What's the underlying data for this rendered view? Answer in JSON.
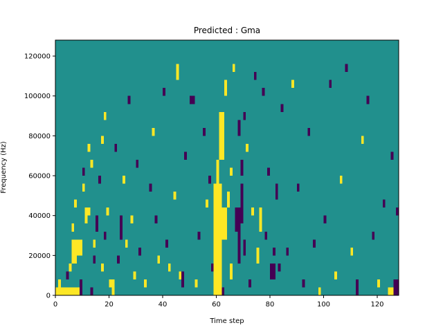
{
  "chart_data": {
    "type": "heatmap",
    "title": "Predicted : Gma",
    "xlabel": "Time step",
    "ylabel": "Frequency (Hz)",
    "xlim": [
      0,
      128
    ],
    "ylim": [
      0,
      128000
    ],
    "xticks": [
      0,
      20,
      40,
      60,
      80,
      100,
      120
    ],
    "yticks": [
      0,
      20000,
      40000,
      60000,
      80000,
      100000,
      120000
    ],
    "xtick_labels": [
      "0",
      "20",
      "40",
      "60",
      "80",
      "100",
      "120"
    ],
    "ytick_labels": [
      "0",
      "20000",
      "40000",
      "60000",
      "80000",
      "100000",
      "120000"
    ],
    "colormap": "viridis",
    "colors": {
      "low": "#440154",
      "mid": "#21908d",
      "high": "#fde725"
    },
    "grid": false,
    "levels": [
      -1,
      0,
      1
    ],
    "background_level": 0,
    "cells": [
      {
        "t": 0,
        "f": 0,
        "w": 9,
        "h": 4000,
        "level": 1
      },
      {
        "t": 1,
        "f": 4000,
        "w": 1,
        "h": 4000,
        "level": 1
      },
      {
        "t": 4,
        "f": 8000,
        "w": 1,
        "h": 4000,
        "level": -1
      },
      {
        "t": 5,
        "f": 12000,
        "w": 1,
        "h": 4000,
        "level": 1
      },
      {
        "t": 6,
        "f": 16000,
        "w": 2,
        "h": 12000,
        "level": 1
      },
      {
        "t": 8,
        "f": 20000,
        "w": 2,
        "h": 8000,
        "level": 1
      },
      {
        "t": 6,
        "f": 32000,
        "w": 1,
        "h": 4000,
        "level": 1
      },
      {
        "t": 7,
        "f": 44000,
        "w": 1,
        "h": 4000,
        "level": 1
      },
      {
        "t": 9,
        "f": 0,
        "w": 1,
        "h": 8000,
        "level": -1
      },
      {
        "t": 10,
        "f": 52000,
        "w": 1,
        "h": 4000,
        "level": 1
      },
      {
        "t": 11,
        "f": 36000,
        "w": 1,
        "h": 8000,
        "level": 1
      },
      {
        "t": 12,
        "f": 40000,
        "w": 1,
        "h": 4000,
        "level": 1
      },
      {
        "t": 12,
        "f": 72000,
        "w": 1,
        "h": 4000,
        "level": 1
      },
      {
        "t": 10,
        "f": 60000,
        "w": 1,
        "h": 4000,
        "level": -1
      },
      {
        "t": 13,
        "f": 64000,
        "w": 1,
        "h": 4000,
        "level": 1
      },
      {
        "t": 13,
        "f": 0,
        "w": 1,
        "h": 4000,
        "level": -1
      },
      {
        "t": 14,
        "f": 16000,
        "w": 1,
        "h": 4000,
        "level": -1
      },
      {
        "t": 14,
        "f": 24000,
        "w": 1,
        "h": 4000,
        "level": 1
      },
      {
        "t": 15,
        "f": 32000,
        "w": 1,
        "h": 8000,
        "level": -1
      },
      {
        "t": 16,
        "f": 56000,
        "w": 1,
        "h": 4000,
        "level": -1
      },
      {
        "t": 17,
        "f": 76000,
        "w": 1,
        "h": 4000,
        "level": 1
      },
      {
        "t": 17,
        "f": 12000,
        "w": 1,
        "h": 4000,
        "level": 1
      },
      {
        "t": 18,
        "f": 88000,
        "w": 1,
        "h": 4000,
        "level": 1
      },
      {
        "t": 18,
        "f": 28000,
        "w": 1,
        "h": 4000,
        "level": -1
      },
      {
        "t": 19,
        "f": 40000,
        "w": 1,
        "h": 4000,
        "level": 1
      },
      {
        "t": 20,
        "f": 4000,
        "w": 1,
        "h": 4000,
        "level": 1
      },
      {
        "t": 21,
        "f": 0,
        "w": 1,
        "h": 8000,
        "level": 1
      },
      {
        "t": 22,
        "f": 72000,
        "w": 1,
        "h": 4000,
        "level": -1
      },
      {
        "t": 23,
        "f": 16000,
        "w": 1,
        "h": 4000,
        "level": -1
      },
      {
        "t": 24,
        "f": 28000,
        "w": 1,
        "h": 12000,
        "level": -1
      },
      {
        "t": 25,
        "f": 56000,
        "w": 1,
        "h": 4000,
        "level": 1
      },
      {
        "t": 26,
        "f": 24000,
        "w": 1,
        "h": 4000,
        "level": 1
      },
      {
        "t": 27,
        "f": 96000,
        "w": 1,
        "h": 4000,
        "level": -1
      },
      {
        "t": 28,
        "f": 36000,
        "w": 1,
        "h": 4000,
        "level": 1
      },
      {
        "t": 29,
        "f": 8000,
        "w": 1,
        "h": 4000,
        "level": 1
      },
      {
        "t": 30,
        "f": 64000,
        "w": 1,
        "h": 4000,
        "level": -1
      },
      {
        "t": 31,
        "f": 20000,
        "w": 1,
        "h": 4000,
        "level": -1
      },
      {
        "t": 33,
        "f": 4000,
        "w": 1,
        "h": 4000,
        "level": 1
      },
      {
        "t": 35,
        "f": 52000,
        "w": 1,
        "h": 4000,
        "level": -1
      },
      {
        "t": 36,
        "f": 80000,
        "w": 1,
        "h": 4000,
        "level": 1
      },
      {
        "t": 37,
        "f": 36000,
        "w": 1,
        "h": 4000,
        "level": -1
      },
      {
        "t": 38,
        "f": 16000,
        "w": 1,
        "h": 4000,
        "level": 1
      },
      {
        "t": 40,
        "f": 100000,
        "w": 1,
        "h": 4000,
        "level": -1
      },
      {
        "t": 41,
        "f": 24000,
        "w": 1,
        "h": 4000,
        "level": -1
      },
      {
        "t": 42,
        "f": 12000,
        "w": 1,
        "h": 4000,
        "level": 1
      },
      {
        "t": 44,
        "f": 48000,
        "w": 1,
        "h": 4000,
        "level": 1
      },
      {
        "t": 45,
        "f": 108000,
        "w": 1,
        "h": 8000,
        "level": 1
      },
      {
        "t": 46,
        "f": 8000,
        "w": 1,
        "h": 4000,
        "level": 1
      },
      {
        "t": 47,
        "f": 4000,
        "w": 1,
        "h": 8000,
        "level": -1
      },
      {
        "t": 48,
        "f": 68000,
        "w": 1,
        "h": 4000,
        "level": -1
      },
      {
        "t": 50,
        "f": 96000,
        "w": 2,
        "h": 4000,
        "level": -1
      },
      {
        "t": 52,
        "f": 4000,
        "w": 1,
        "h": 4000,
        "level": 1
      },
      {
        "t": 53,
        "f": 28000,
        "w": 1,
        "h": 4000,
        "level": -1
      },
      {
        "t": 55,
        "f": 80000,
        "w": 1,
        "h": 4000,
        "level": -1
      },
      {
        "t": 56,
        "f": 44000,
        "w": 1,
        "h": 4000,
        "level": 1
      },
      {
        "t": 57,
        "f": 56000,
        "w": 1,
        "h": 4000,
        "level": -1
      },
      {
        "t": 58,
        "f": 12000,
        "w": 1,
        "h": 4000,
        "level": -1
      },
      {
        "t": 59,
        "f": 0,
        "w": 3,
        "h": 56000,
        "level": 1
      },
      {
        "t": 60,
        "f": 56000,
        "w": 1,
        "h": 12000,
        "level": 1
      },
      {
        "t": 61,
        "f": 68000,
        "w": 2,
        "h": 24000,
        "level": 1
      },
      {
        "t": 62,
        "f": 0,
        "w": 1,
        "h": 4000,
        "level": -1
      },
      {
        "t": 62,
        "f": 28000,
        "w": 2,
        "h": 16000,
        "level": 1
      },
      {
        "t": 63,
        "f": 100000,
        "w": 1,
        "h": 8000,
        "level": 1
      },
      {
        "t": 64,
        "f": 44000,
        "w": 1,
        "h": 8000,
        "level": 1
      },
      {
        "t": 65,
        "f": 60000,
        "w": 1,
        "h": 4000,
        "level": 1
      },
      {
        "t": 65,
        "f": 8000,
        "w": 1,
        "h": 8000,
        "level": 1
      },
      {
        "t": 66,
        "f": 112000,
        "w": 1,
        "h": 4000,
        "level": 1
      },
      {
        "t": 67,
        "f": 32000,
        "w": 1,
        "h": 12000,
        "level": -1
      },
      {
        "t": 68,
        "f": 16000,
        "w": 1,
        "h": 28000,
        "level": -1
      },
      {
        "t": 69,
        "f": 36000,
        "w": 1,
        "h": 20000,
        "level": -1
      },
      {
        "t": 68,
        "f": 80000,
        "w": 1,
        "h": 8000,
        "level": -1
      },
      {
        "t": 69,
        "f": 60000,
        "w": 1,
        "h": 8000,
        "level": -1
      },
      {
        "t": 70,
        "f": 20000,
        "w": 1,
        "h": 8000,
        "level": -1
      },
      {
        "t": 70,
        "f": 88000,
        "w": 1,
        "h": 4000,
        "level": -1
      },
      {
        "t": 71,
        "f": 72000,
        "w": 1,
        "h": 4000,
        "level": 1
      },
      {
        "t": 72,
        "f": 4000,
        "w": 1,
        "h": 4000,
        "level": -1
      },
      {
        "t": 73,
        "f": 40000,
        "w": 1,
        "h": 4000,
        "level": 1
      },
      {
        "t": 74,
        "f": 108000,
        "w": 1,
        "h": 4000,
        "level": -1
      },
      {
        "t": 75,
        "f": 16000,
        "w": 1,
        "h": 8000,
        "level": 1
      },
      {
        "t": 76,
        "f": 32000,
        "w": 1,
        "h": 12000,
        "level": 1
      },
      {
        "t": 77,
        "f": 100000,
        "w": 1,
        "h": 4000,
        "level": -1
      },
      {
        "t": 78,
        "f": 28000,
        "w": 1,
        "h": 4000,
        "level": -1
      },
      {
        "t": 79,
        "f": 60000,
        "w": 1,
        "h": 4000,
        "level": -1
      },
      {
        "t": 80,
        "f": 8000,
        "w": 2,
        "h": 8000,
        "level": -1
      },
      {
        "t": 81,
        "f": 20000,
        "w": 1,
        "h": 4000,
        "level": -1
      },
      {
        "t": 82,
        "f": 48000,
        "w": 1,
        "h": 8000,
        "level": -1
      },
      {
        "t": 83,
        "f": 12000,
        "w": 1,
        "h": 4000,
        "level": -1
      },
      {
        "t": 84,
        "f": 92000,
        "w": 1,
        "h": 4000,
        "level": -1
      },
      {
        "t": 86,
        "f": 20000,
        "w": 1,
        "h": 4000,
        "level": -1
      },
      {
        "t": 88,
        "f": 104000,
        "w": 1,
        "h": 4000,
        "level": 1
      },
      {
        "t": 90,
        "f": 52000,
        "w": 1,
        "h": 4000,
        "level": -1
      },
      {
        "t": 92,
        "f": 4000,
        "w": 1,
        "h": 4000,
        "level": -1
      },
      {
        "t": 94,
        "f": 80000,
        "w": 1,
        "h": 4000,
        "level": -1
      },
      {
        "t": 96,
        "f": 24000,
        "w": 1,
        "h": 4000,
        "level": -1
      },
      {
        "t": 98,
        "f": 0,
        "w": 1,
        "h": 4000,
        "level": 1
      },
      {
        "t": 100,
        "f": 36000,
        "w": 1,
        "h": 4000,
        "level": -1
      },
      {
        "t": 102,
        "f": 104000,
        "w": 1,
        "h": 4000,
        "level": -1
      },
      {
        "t": 104,
        "f": 8000,
        "w": 1,
        "h": 4000,
        "level": 1
      },
      {
        "t": 106,
        "f": 56000,
        "w": 1,
        "h": 4000,
        "level": 1
      },
      {
        "t": 108,
        "f": 112000,
        "w": 1,
        "h": 4000,
        "level": -1
      },
      {
        "t": 110,
        "f": 20000,
        "w": 1,
        "h": 4000,
        "level": 1
      },
      {
        "t": 112,
        "f": 0,
        "w": 1,
        "h": 8000,
        "level": -1
      },
      {
        "t": 114,
        "f": 76000,
        "w": 1,
        "h": 4000,
        "level": 1
      },
      {
        "t": 116,
        "f": 96000,
        "w": 1,
        "h": 4000,
        "level": -1
      },
      {
        "t": 118,
        "f": 28000,
        "w": 1,
        "h": 4000,
        "level": -1
      },
      {
        "t": 120,
        "f": 4000,
        "w": 1,
        "h": 4000,
        "level": 1
      },
      {
        "t": 122,
        "f": 44000,
        "w": 1,
        "h": 4000,
        "level": -1
      },
      {
        "t": 124,
        "f": 0,
        "w": 2,
        "h": 4000,
        "level": 1
      },
      {
        "t": 125,
        "f": 68000,
        "w": 1,
        "h": 4000,
        "level": -1
      },
      {
        "t": 126,
        "f": 0,
        "w": 2,
        "h": 8000,
        "level": -1
      },
      {
        "t": 127,
        "f": 40000,
        "w": 1,
        "h": 4000,
        "level": -1
      }
    ]
  }
}
